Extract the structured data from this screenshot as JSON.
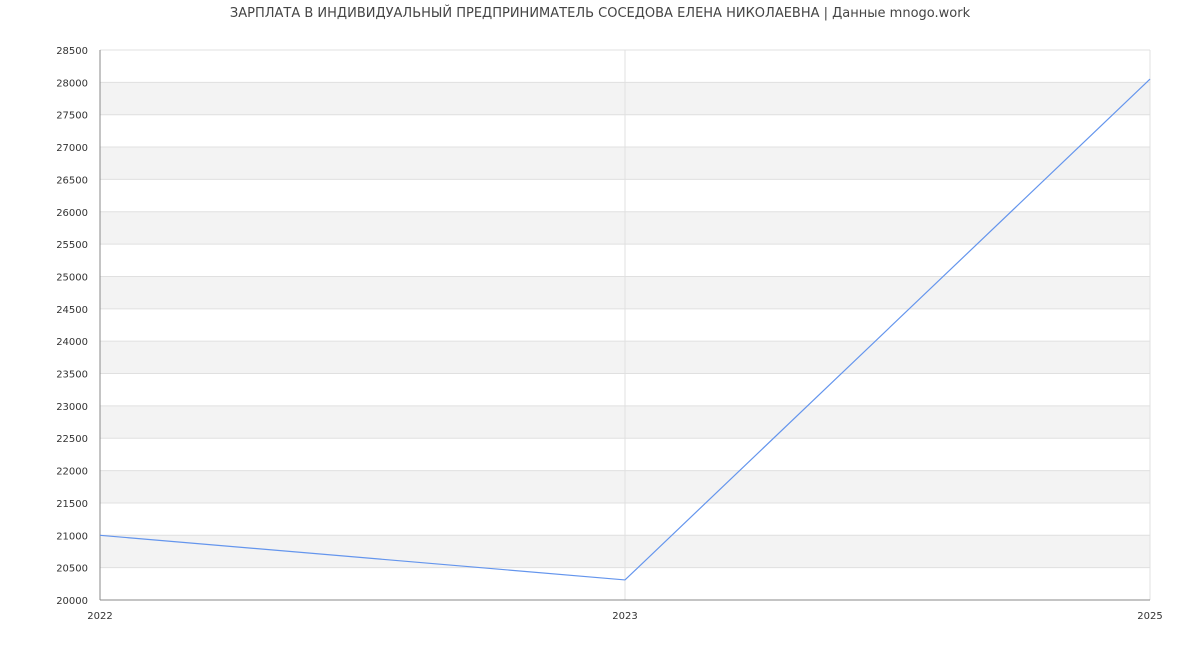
{
  "chart_data": {
    "type": "line",
    "title": "ЗАРПЛАТА В ИНДИВИДУАЛЬНЫЙ ПРЕДПРИНИМАТЕЛЬ СОСЕДОВА ЕЛЕНА НИКОЛАЕВНА | Данные mnogo.work",
    "categories": [
      "2022",
      "2023",
      "2025"
    ],
    "series": [
      {
        "values": [
          21000,
          20310,
          28050
        ],
        "color": "#6495ED"
      }
    ],
    "xlabel": "",
    "ylabel": "",
    "ylim": [
      20000,
      28500
    ],
    "yticks": [
      20000,
      20500,
      21000,
      21500,
      22000,
      22500,
      23000,
      23500,
      24000,
      24500,
      25000,
      25500,
      26000,
      26500,
      27000,
      27500,
      28000,
      28500
    ],
    "grid": true,
    "band_color": "#f3f3f3",
    "grid_color": "#e0e0e0",
    "axis_color": "#888888"
  }
}
